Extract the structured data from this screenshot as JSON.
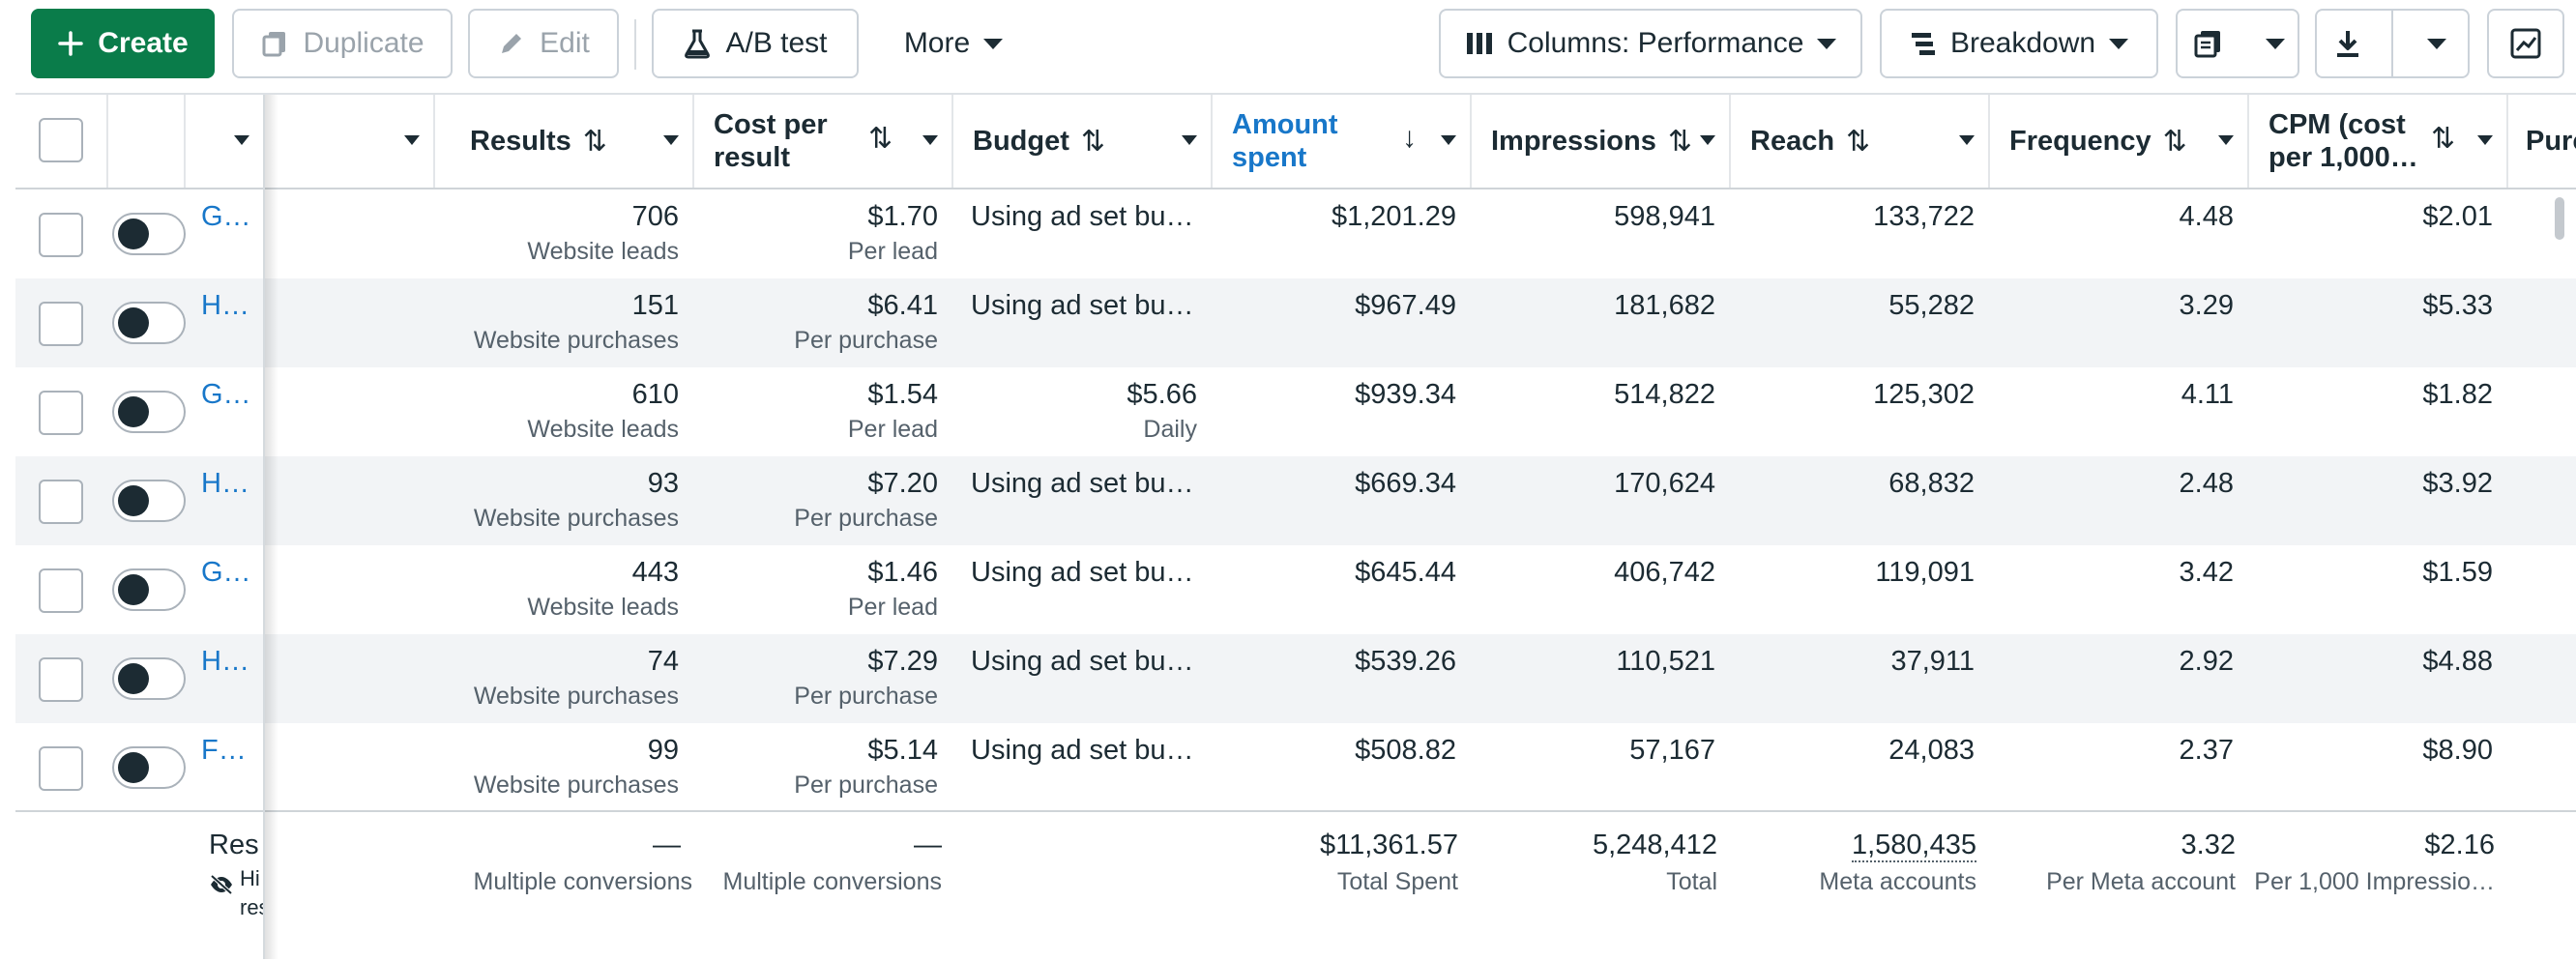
{
  "toolbar": {
    "create": "Create",
    "duplicate": "Duplicate",
    "edit": "Edit",
    "ab_test": "A/B test",
    "more": "More",
    "columns": "Columns: Performance",
    "breakdown": "Breakdown"
  },
  "columns": {
    "results": "Results",
    "cost_per_result_1": "Cost per",
    "cost_per_result_2": "result",
    "budget": "Budget",
    "amount_spent_1": "Amount",
    "amount_spent_2": "spent",
    "impressions": "Impressions",
    "reach": "Reach",
    "frequency": "Frequency",
    "cpm_1": "CPM (cost",
    "cpm_2": "per 1,000…",
    "purchases": "Purch"
  },
  "sort_glyphs": {
    "both": "⇅",
    "down": "↓"
  },
  "rows": [
    {
      "name": "G…",
      "results": "706",
      "results_sub": "Website leads",
      "cpr": "$1.70",
      "cpr_sub": "Per lead",
      "budget": "Using ad set bu…",
      "budget_sub": "",
      "spent": "$1,201.29",
      "impressions": "598,941",
      "reach": "133,722",
      "frequency": "4.48",
      "cpm": "$2.01"
    },
    {
      "name": "H…",
      "results": "151",
      "results_sub": "Website purchases",
      "cpr": "$6.41",
      "cpr_sub": "Per purchase",
      "budget": "Using ad set bu…",
      "budget_sub": "",
      "spent": "$967.49",
      "impressions": "181,682",
      "reach": "55,282",
      "frequency": "3.29",
      "cpm": "$5.33"
    },
    {
      "name": "G…",
      "results": "610",
      "results_sub": "Website leads",
      "cpr": "$1.54",
      "cpr_sub": "Per lead",
      "budget": "$5.66",
      "budget_sub": "Daily",
      "spent": "$939.34",
      "impressions": "514,822",
      "reach": "125,302",
      "frequency": "4.11",
      "cpm": "$1.82"
    },
    {
      "name": "H…",
      "results": "93",
      "results_sub": "Website purchases",
      "cpr": "$7.20",
      "cpr_sub": "Per purchase",
      "budget": "Using ad set bu…",
      "budget_sub": "",
      "spent": "$669.34",
      "impressions": "170,624",
      "reach": "68,832",
      "frequency": "2.48",
      "cpm": "$3.92"
    },
    {
      "name": "G…",
      "results": "443",
      "results_sub": "Website leads",
      "cpr": "$1.46",
      "cpr_sub": "Per lead",
      "budget": "Using ad set bu…",
      "budget_sub": "",
      "spent": "$645.44",
      "impressions": "406,742",
      "reach": "119,091",
      "frequency": "3.42",
      "cpm": "$1.59"
    },
    {
      "name": "H…",
      "results": "74",
      "results_sub": "Website purchases",
      "cpr": "$7.29",
      "cpr_sub": "Per purchase",
      "budget": "Using ad set bu…",
      "budget_sub": "",
      "spent": "$539.26",
      "impressions": "110,521",
      "reach": "37,911",
      "frequency": "2.92",
      "cpm": "$4.88"
    },
    {
      "name": "F…",
      "results": "99",
      "results_sub": "Website purchases",
      "cpr": "$5.14",
      "cpr_sub": "Per purchase",
      "budget": "Using ad set bu…",
      "budget_sub": "",
      "spent": "$508.82",
      "impressions": "57,167",
      "reach": "24,083",
      "frequency": "2.37",
      "cpm": "$8.90"
    }
  ],
  "totals": {
    "label": "Res",
    "hidden_1": "Hi",
    "hidden_2": "res",
    "results": "—",
    "results_sub": "Multiple conversions",
    "cpr": "—",
    "cpr_sub": "Multiple conversions",
    "spent": "$11,361.57",
    "spent_sub": "Total Spent",
    "impressions": "5,248,412",
    "impressions_sub": "Total",
    "reach": "1,580,435",
    "reach_sub": "Meta accounts",
    "frequency": "3.32",
    "frequency_sub": "Per Meta account",
    "cpm": "$2.16",
    "cpm_sub": "Per 1,000 Impressio…"
  },
  "colors": {
    "primary": "#0a7c4a",
    "link": "#1877c9",
    "alt_row": "#f2f4f6"
  }
}
